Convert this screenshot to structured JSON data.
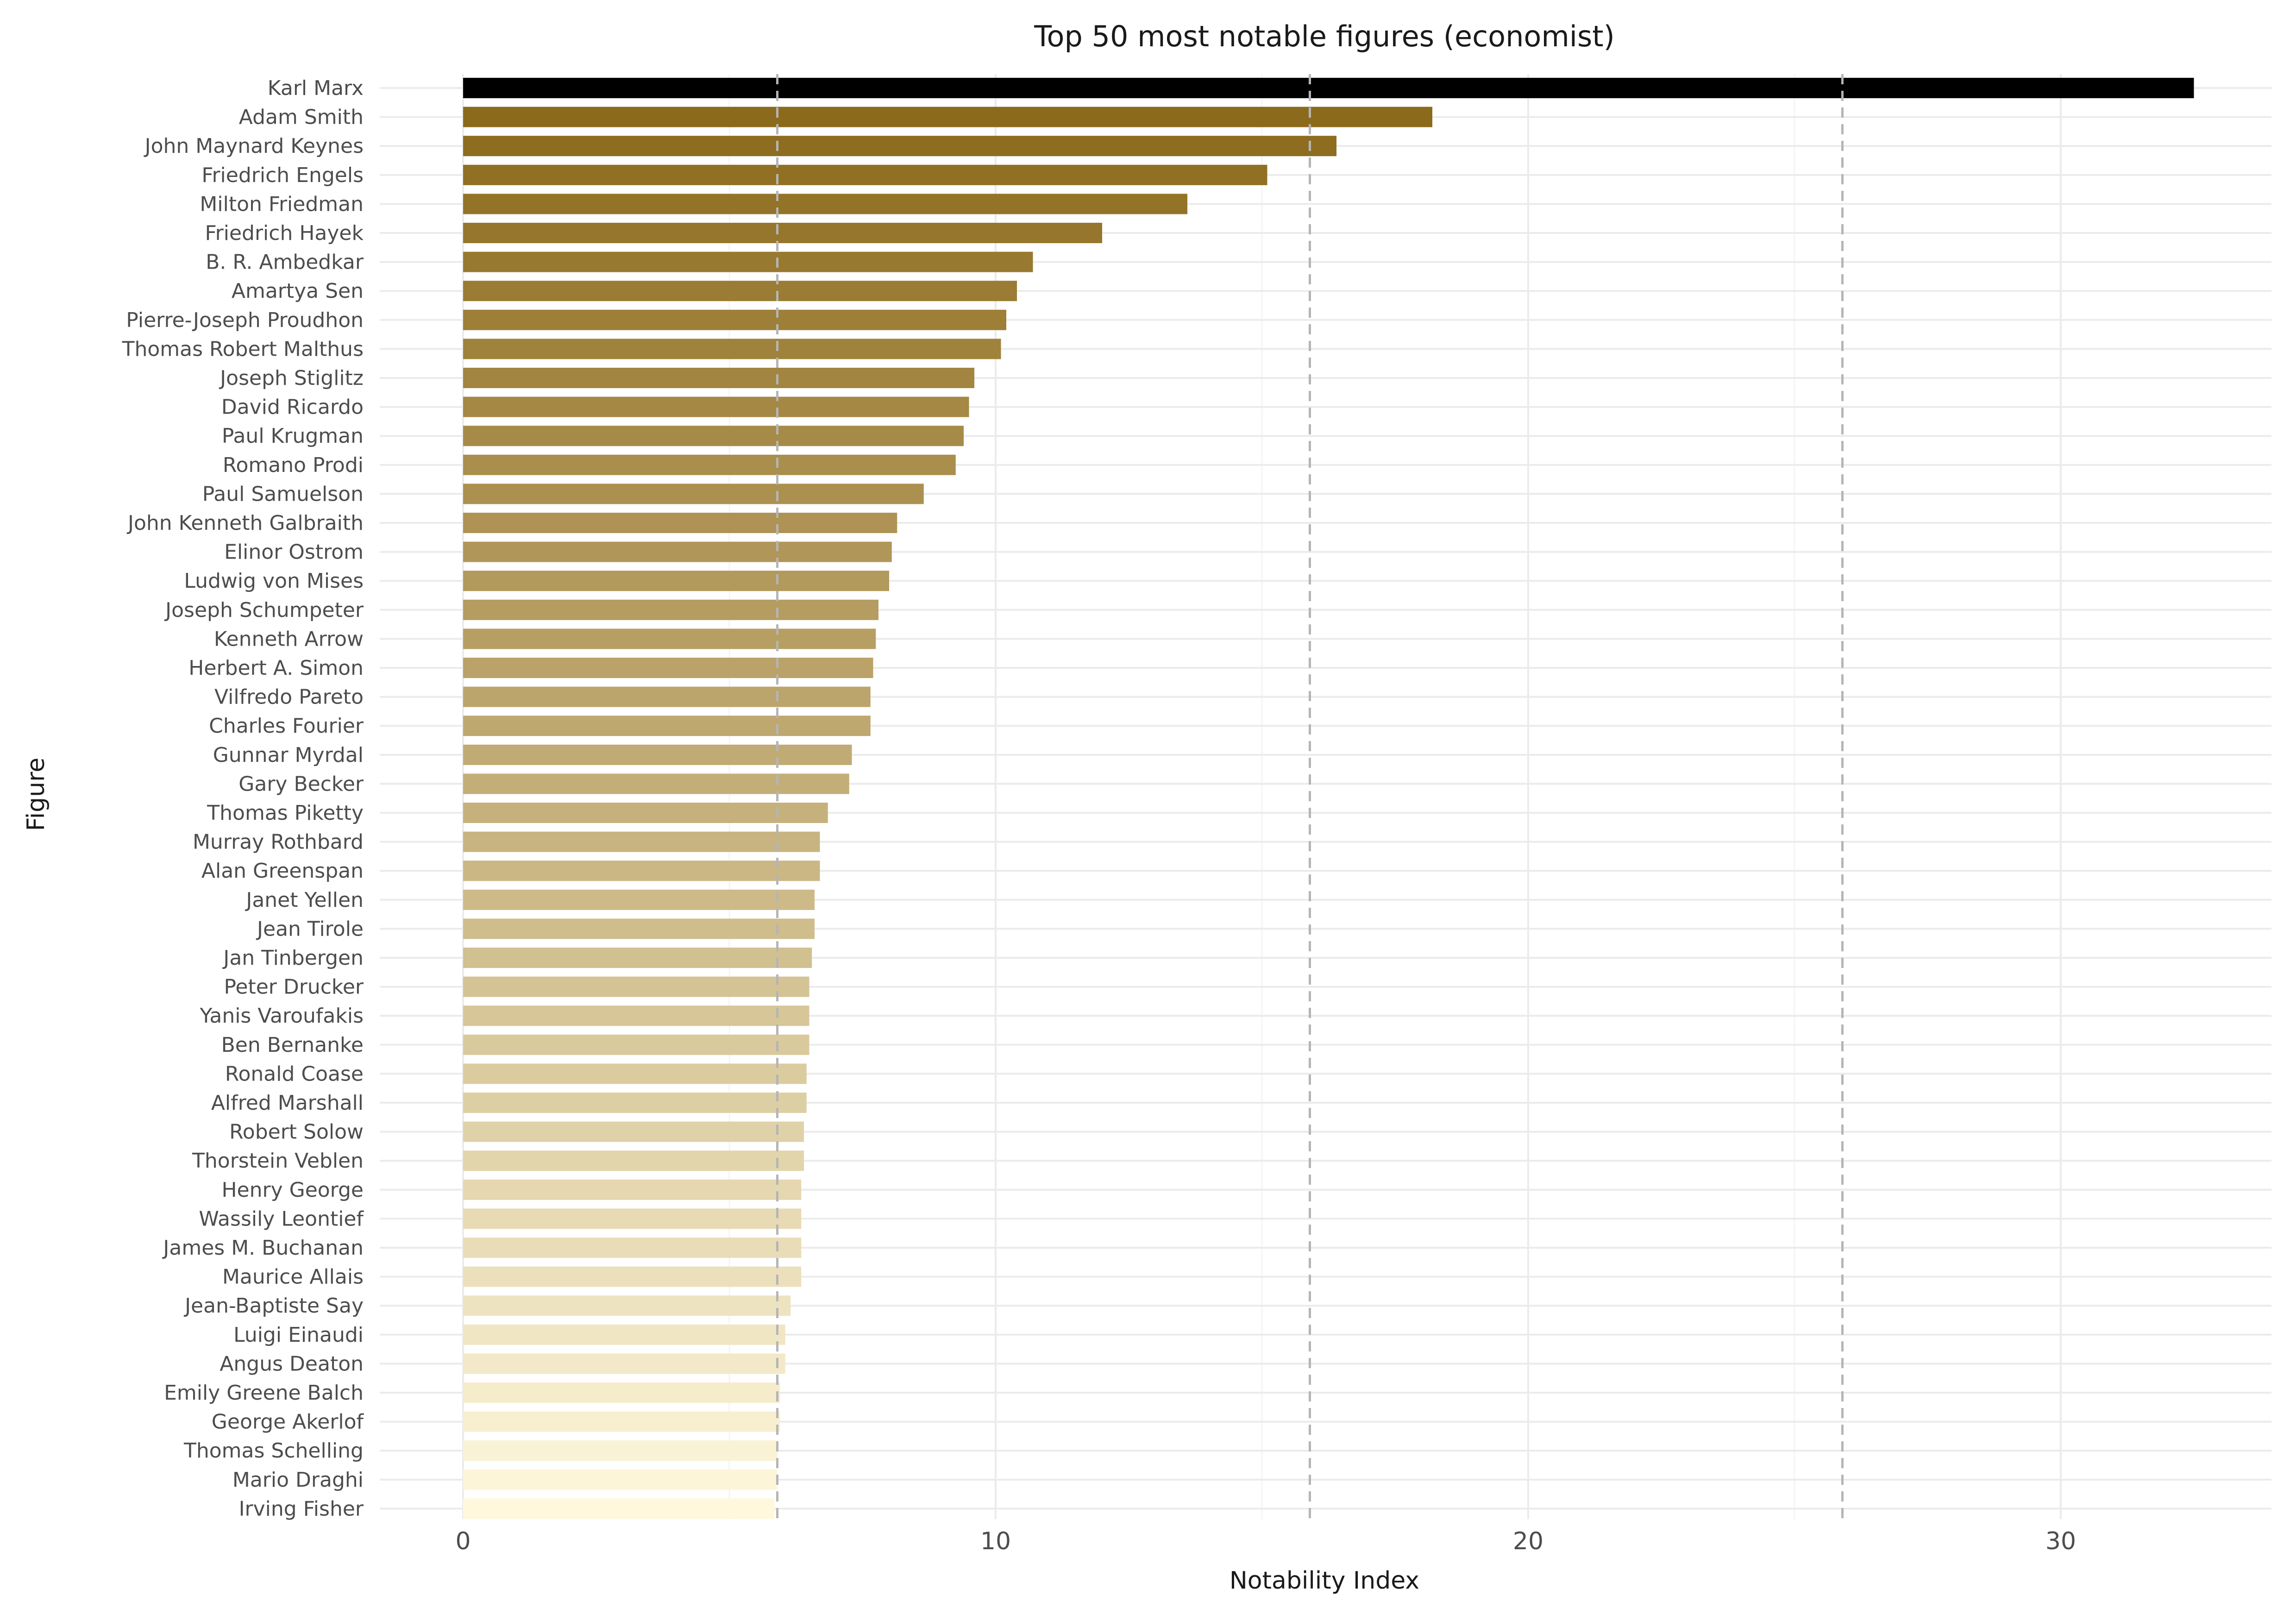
{
  "chart_data": {
    "type": "bar",
    "orientation": "horizontal",
    "title": "Top 50 most notable figures (economist)",
    "xlabel": "Notability Index",
    "ylabel": "Figure",
    "xlim": [
      -1.6,
      33.5
    ],
    "xticks": [
      0,
      10,
      20,
      30
    ],
    "reference_lines": [
      5.9,
      15.9,
      25.9
    ],
    "grid": true,
    "legend": "none",
    "colors": {
      "highest": "#000000",
      "gradient_start": "#8C6A1C",
      "gradient_end": "#FFF8DC",
      "grid": "#ebebeb",
      "reference_line": "#b5b5b5"
    },
    "categories": [
      "Karl Marx",
      "Adam Smith",
      "John Maynard Keynes",
      "Friedrich Engels",
      "Milton Friedman",
      "Friedrich Hayek",
      "B. R. Ambedkar",
      "Amartya Sen",
      "Pierre-Joseph Proudhon",
      "Thomas Robert Malthus",
      "Joseph Stiglitz",
      "David Ricardo",
      "Paul Krugman",
      "Romano Prodi",
      "Paul Samuelson",
      "John Kenneth Galbraith",
      "Elinor Ostrom",
      "Ludwig von Mises",
      "Joseph Schumpeter",
      "Kenneth Arrow",
      "Herbert A. Simon",
      "Vilfredo Pareto",
      "Charles Fourier",
      "Gunnar Myrdal",
      "Gary Becker",
      "Thomas Piketty",
      "Murray Rothbard",
      "Alan Greenspan",
      "Janet Yellen",
      "Jean Tirole",
      "Jan Tinbergen",
      "Peter Drucker",
      "Yanis Varoufakis",
      "Ben Bernanke",
      "Ronald Coase",
      "Alfred Marshall",
      "Robert Solow",
      "Thorstein Veblen",
      "Henry George",
      "Wassily Leontief",
      "James M. Buchanan",
      "Maurice Allais",
      "Jean-Baptiste Say",
      "Luigi Einaudi",
      "Angus Deaton",
      "Emily Greene Balch",
      "George Akerlof",
      "Thomas Schelling",
      "Mario Draghi",
      "Irving Fisher"
    ],
    "values": [
      32.5,
      18.2,
      16.4,
      15.1,
      13.6,
      12.0,
      10.7,
      10.4,
      10.2,
      10.1,
      9.6,
      9.5,
      9.4,
      9.25,
      8.65,
      8.15,
      8.05,
      8.0,
      7.8,
      7.75,
      7.7,
      7.65,
      7.65,
      7.3,
      7.25,
      6.85,
      6.7,
      6.7,
      6.6,
      6.6,
      6.55,
      6.5,
      6.5,
      6.5,
      6.45,
      6.45,
      6.4,
      6.4,
      6.35,
      6.35,
      6.35,
      6.35,
      6.15,
      6.05,
      6.05,
      5.95,
      5.95,
      5.9,
      5.9,
      5.85
    ]
  }
}
